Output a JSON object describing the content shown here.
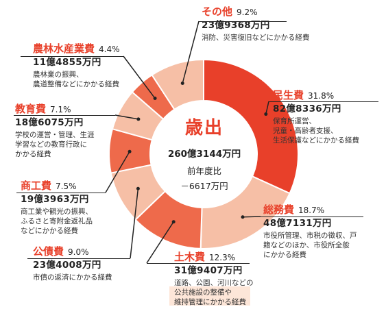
{
  "chart_data": {
    "type": "pie",
    "donut": true,
    "center_title": "歳出",
    "center_total": "260億3144万円",
    "center_comparison_label": "前年度比",
    "center_comparison_value": "－6617万円",
    "slices": [
      {
        "name": "民生費",
        "pct": 31.8,
        "pct_label": "31.8%",
        "amount": "82億8336万円",
        "description": "保育所運営、\n児童・高齢者支援、\n生活保護などにかかる経費",
        "color": "#e8402a"
      },
      {
        "name": "総務費",
        "pct": 18.7,
        "pct_label": "18.7%",
        "amount": "48億7131万円",
        "description": "市役所管理、市税の徴収、戸\n籍などのほか、市役所全般\nにかかる経費",
        "color": "#f6bfa6"
      },
      {
        "name": "土木費",
        "pct": 12.3,
        "pct_label": "12.3%",
        "amount": "31億9407万円",
        "description": "道路、公園、河川などの\n公共施設の整備や\n維持管理にかかる経費",
        "color": "#ee6a4b"
      },
      {
        "name": "公債費",
        "pct": 9.0,
        "pct_label": "9.0%",
        "amount": "23億4008万円",
        "description": "市債の返済にかかる経費",
        "color": "#f6bfa6"
      },
      {
        "name": "商工費",
        "pct": 7.5,
        "pct_label": "7.5%",
        "amount": "19億3963万円",
        "description": "商工業や観光の振興、\nふるさと寄附金返礼品\nなどにかかる経費",
        "color": "#ee6a4b"
      },
      {
        "name": "教育費",
        "pct": 7.1,
        "pct_label": "7.1%",
        "amount": "18億6075万円",
        "description": "学校の運営・管理、生涯\n学習などの教育行政に\nかかる経費",
        "color": "#f6bfa6"
      },
      {
        "name": "農林水産業費",
        "pct": 4.4,
        "pct_label": "4.4%",
        "amount": "11億4855万円",
        "description": "農林業の振興、\n農道整備などにかかる経費",
        "color": "#ee6a4b"
      },
      {
        "name": "その他",
        "pct": 9.2,
        "pct_label": "9.2%",
        "amount": "23億9368万円",
        "description": "消防、災害復旧などにかかる経費",
        "color": "#f6bfa6"
      }
    ]
  }
}
